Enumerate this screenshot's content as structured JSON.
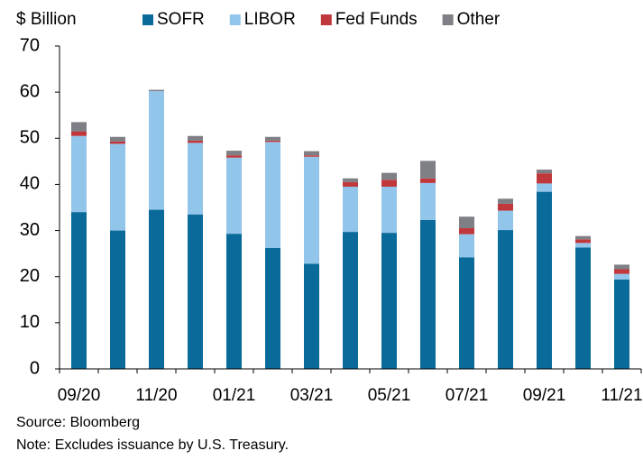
{
  "chart_data": {
    "type": "stacked_bar",
    "y_label": "$ Billion",
    "categories": [
      "09/20",
      null,
      "11/20",
      null,
      "01/21",
      null,
      "03/21",
      null,
      "05/21",
      null,
      "07/21",
      null,
      "09/21",
      null,
      "11/21"
    ],
    "series": [
      {
        "name": "SOFR",
        "color": "#0a6a9a",
        "values": [
          34,
          30,
          34.5,
          33.5,
          29.3,
          26.2,
          22.8,
          29.7,
          29.5,
          32.3,
          24.2,
          30.1,
          38.4,
          26.3,
          19.4
        ]
      },
      {
        "name": "LIBOR",
        "color": "#92c5ea",
        "values": [
          16.5,
          18.8,
          25.7,
          15.5,
          16.5,
          23,
          23.2,
          9.8,
          10,
          8,
          5,
          4.2,
          1.8,
          1,
          1.2
        ]
      },
      {
        "name": "Fed Funds",
        "color": "#c0383c",
        "values": [
          1,
          0.5,
          0,
          0.5,
          0.5,
          0.3,
          0.3,
          1,
          1.5,
          1,
          1.3,
          1.5,
          2.2,
          0.8,
          1
        ]
      },
      {
        "name": "Other",
        "color": "#7f7f86",
        "values": [
          2,
          1,
          0.3,
          1,
          1,
          0.8,
          0.9,
          0.8,
          1.5,
          3.8,
          2.5,
          1.1,
          0.8,
          0.7,
          1
        ]
      }
    ],
    "ylim": [
      0,
      70
    ],
    "yticks": [
      0,
      10,
      20,
      30,
      40,
      50,
      60,
      70
    ],
    "source": "Source: Bloomberg",
    "note": "Note: Excludes issuance by U.S. Treasury."
  }
}
